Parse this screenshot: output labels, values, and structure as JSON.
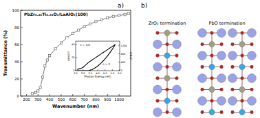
{
  "chart_data": [
    {
      "type": "line",
      "title": "PbZr₀.₄₆Ti₀.₅₄O₃/LaAlO₃(100)",
      "x_label": "Wavenumber (nm)",
      "y_label": "Transmittance (%)",
      "x": [
        250,
        280,
        300,
        320,
        340,
        360,
        380,
        400,
        450,
        500,
        550,
        600,
        650,
        700,
        750,
        800,
        850,
        900,
        950,
        1000,
        1050,
        1080
      ],
      "series": [
        {
          "name": "PbZr₀.₄₆Ti₀.₅₄O₃/LaAlO₃(100)",
          "color": "#555555",
          "marker": "square",
          "values": [
            3,
            4,
            6,
            10,
            22,
            35,
            42,
            47,
            55,
            62,
            68,
            73,
            77,
            81,
            84,
            87,
            89,
            91,
            93,
            94,
            95,
            96
          ]
        }
      ],
      "xlim": [
        150,
        1100
      ],
      "xticks": [
        200,
        300,
        400,
        500,
        600,
        700,
        800,
        900,
        1000
      ],
      "ylim": [
        0,
        100
      ],
      "yticks": [
        0,
        20,
        40,
        60,
        80,
        100
      ]
    },
    {
      "type": "line",
      "x_label": "Photon Energy (eV)",
      "y_label": "(αhν)¹/²",
      "y2_label": "(αhν)²",
      "x": [
        2.6,
        2.8,
        3.0,
        3.2,
        3.4,
        3.6,
        3.8,
        4.0,
        4.2,
        4.4,
        4.6,
        4.8,
        5.0,
        5.2
      ],
      "series": [
        {
          "name": "n = 1/2",
          "color": "#000000",
          "values": [
            2,
            3,
            5,
            9,
            13,
            16,
            19,
            22,
            25,
            28,
            31,
            34,
            37,
            40
          ]
        },
        {
          "name": "n = 2",
          "color": "#000000",
          "axis": "y2",
          "values": [
            0,
            0,
            0,
            0,
            5,
            40,
            120,
            220,
            340,
            480,
            640,
            820,
            1020,
            1240
          ]
        }
      ],
      "xlim": [
        2.5,
        5.5
      ],
      "xticks": [
        {
          "value": 2.5,
          "label": "2.5"
        },
        {
          "value": 3,
          "label": "3.0"
        },
        {
          "value": 3.5,
          "label": "3.5"
        },
        {
          "value": 4,
          "label": "4.0"
        },
        {
          "value": 4.5,
          "label": "4.5"
        },
        {
          "value": 5,
          "label": "5.0"
        },
        {
          "value": 5.5,
          "label": "5.5"
        }
      ],
      "ylim": [
        0,
        45
      ],
      "yticks": [
        0,
        20,
        40
      ],
      "y2lim": [
        0,
        1400
      ],
      "y2ticks": [
        0,
        400,
        800,
        1200
      ]
    }
  ],
  "figure": {
    "label_a": "a)",
    "label_b": "b)",
    "structures": [
      {
        "title": "ZrO₂ termination"
      },
      {
        "title": "PbO termination"
      }
    ]
  }
}
